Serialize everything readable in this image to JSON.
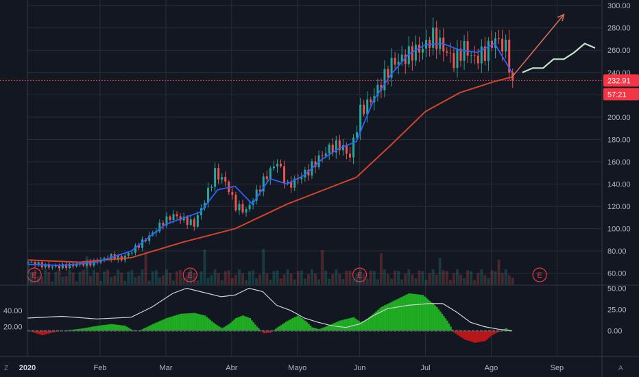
{
  "chart_data": {
    "type": "candlestick",
    "x_ticks": [
      "2020",
      "Feb",
      "Mar",
      "Abr",
      "Mayo",
      "Jun",
      "Jul",
      "Ago",
      "Sep"
    ],
    "price_axis": {
      "ticks": [
        "300.00",
        "280.00",
        "260.00",
        "240.00",
        "220.00",
        "200.00",
        "180.00",
        "160.00",
        "140.00",
        "120.00",
        "100.00",
        "80.00",
        "60.00"
      ],
      "ylim": [
        50,
        305
      ]
    },
    "price_path": [
      [
        0,
        70
      ],
      [
        3,
        68
      ],
      [
        6,
        66
      ],
      [
        9,
        66
      ],
      [
        12,
        67
      ],
      [
        15,
        68
      ],
      [
        18,
        69
      ],
      [
        21,
        72
      ],
      [
        24,
        75
      ],
      [
        27,
        73
      ],
      [
        30,
        80
      ],
      [
        33,
        88
      ],
      [
        36,
        96
      ],
      [
        39,
        106
      ],
      [
        42,
        112
      ],
      [
        45,
        108
      ],
      [
        48,
        104
      ],
      [
        51,
        125
      ],
      [
        54,
        150
      ],
      [
        57,
        142
      ],
      [
        60,
        120
      ],
      [
        63,
        116
      ],
      [
        66,
        132
      ],
      [
        69,
        148
      ],
      [
        72,
        160
      ],
      [
        75,
        138
      ],
      [
        78,
        145
      ],
      [
        81,
        152
      ],
      [
        84,
        163
      ],
      [
        87,
        172
      ],
      [
        90,
        175
      ],
      [
        93,
        165
      ],
      [
        96,
        205
      ],
      [
        99,
        215
      ],
      [
        102,
        230
      ],
      [
        105,
        248
      ],
      [
        108,
        252
      ],
      [
        111,
        258
      ],
      [
        114,
        262
      ],
      [
        117,
        272
      ],
      [
        120,
        262
      ],
      [
        123,
        250
      ],
      [
        126,
        262
      ],
      [
        129,
        252
      ],
      [
        132,
        258
      ],
      [
        135,
        270
      ],
      [
        138,
        262
      ],
      [
        140,
        232.91
      ]
    ],
    "sma_fast": [
      [
        0,
        68
      ],
      [
        10,
        67
      ],
      [
        20,
        70
      ],
      [
        30,
        80
      ],
      [
        40,
        104
      ],
      [
        50,
        115
      ],
      [
        55,
        135
      ],
      [
        60,
        138
      ],
      [
        65,
        122
      ],
      [
        70,
        145
      ],
      [
        75,
        140
      ],
      [
        80,
        148
      ],
      [
        85,
        162
      ],
      [
        90,
        172
      ],
      [
        95,
        178
      ],
      [
        100,
        215
      ],
      [
        105,
        238
      ],
      [
        110,
        256
      ],
      [
        115,
        265
      ],
      [
        120,
        266
      ],
      [
        125,
        260
      ],
      [
        130,
        258
      ],
      [
        135,
        266
      ],
      [
        140,
        240
      ]
    ],
    "sma_slow": [
      [
        0,
        72
      ],
      [
        15,
        70
      ],
      [
        30,
        74
      ],
      [
        45,
        88
      ],
      [
        60,
        100
      ],
      [
        75,
        122
      ],
      [
        90,
        140
      ],
      [
        95,
        146
      ],
      [
        105,
        175
      ],
      [
        115,
        205
      ],
      [
        125,
        222
      ],
      [
        135,
        232
      ],
      [
        140,
        236
      ]
    ],
    "projection": [
      [
        143,
        240
      ],
      [
        146,
        244
      ],
      [
        149,
        244
      ],
      [
        152,
        252
      ],
      [
        155,
        252
      ],
      [
        158,
        258
      ],
      [
        161,
        266
      ],
      [
        164,
        262
      ]
    ],
    "arrow": {
      "from": [
        140,
        236
      ],
      "to": [
        155,
        292
      ]
    },
    "oscillator": {
      "ticks_right": [
        "50.00",
        "25.00",
        "0.00"
      ],
      "ticks_left": [
        "40.00",
        "20.00"
      ],
      "ylim": [
        -30,
        52
      ],
      "histogram": [
        [
          0,
          0
        ],
        [
          4,
          -5
        ],
        [
          8,
          -1
        ],
        [
          12,
          1
        ],
        [
          16,
          3
        ],
        [
          20,
          6
        ],
        [
          24,
          8
        ],
        [
          28,
          6
        ],
        [
          30,
          1
        ],
        [
          32,
          0
        ],
        [
          36,
          8
        ],
        [
          40,
          15
        ],
        [
          44,
          20
        ],
        [
          48,
          21
        ],
        [
          51,
          18
        ],
        [
          54,
          8
        ],
        [
          56,
          3
        ],
        [
          58,
          8
        ],
        [
          60,
          15
        ],
        [
          62,
          18
        ],
        [
          64,
          15
        ],
        [
          66,
          5
        ],
        [
          68,
          -3
        ],
        [
          70,
          -2
        ],
        [
          72,
          4
        ],
        [
          75,
          12
        ],
        [
          78,
          18
        ],
        [
          80,
          12
        ],
        [
          82,
          4
        ],
        [
          84,
          2
        ],
        [
          86,
          5
        ],
        [
          90,
          12
        ],
        [
          94,
          16
        ],
        [
          96,
          10
        ],
        [
          98,
          14
        ],
        [
          102,
          28
        ],
        [
          106,
          36
        ],
        [
          110,
          44
        ],
        [
          114,
          42
        ],
        [
          118,
          28
        ],
        [
          121,
          12
        ],
        [
          123,
          -2
        ],
        [
          126,
          -10
        ],
        [
          129,
          -14
        ],
        [
          132,
          -12
        ],
        [
          134,
          -5
        ],
        [
          136,
          -1
        ],
        [
          138,
          3
        ],
        [
          140,
          -2
        ]
      ],
      "line": [
        [
          0,
          15
        ],
        [
          10,
          17
        ],
        [
          20,
          14
        ],
        [
          30,
          16
        ],
        [
          36,
          28
        ],
        [
          42,
          44
        ],
        [
          46,
          50
        ],
        [
          50,
          46
        ],
        [
          56,
          40
        ],
        [
          60,
          42
        ],
        [
          64,
          50
        ],
        [
          68,
          46
        ],
        [
          72,
          30
        ],
        [
          76,
          24
        ],
        [
          80,
          15
        ],
        [
          84,
          10
        ],
        [
          88,
          6
        ],
        [
          92,
          4
        ],
        [
          96,
          8
        ],
        [
          100,
          18
        ],
        [
          104,
          26
        ],
        [
          110,
          30
        ],
        [
          116,
          32
        ],
        [
          120,
          32
        ],
        [
          124,
          22
        ],
        [
          128,
          10
        ],
        [
          132,
          5
        ],
        [
          136,
          2
        ],
        [
          140,
          0
        ]
      ]
    }
  },
  "price_label": "232.91",
  "countdown_label": "57:21",
  "earnings_label": "E",
  "corner_left": "Z",
  "corner_right": "A",
  "colors": {
    "background": "#131722",
    "grid": "#2a2e39",
    "up": "#26a69a",
    "down": "#ef5350",
    "sma_fast": "#2962ff",
    "sma_slow": "#d2452a",
    "projection": "#c8e6c9",
    "arrow": "#e0715c",
    "price_line": "#f23645",
    "osc_pos": "#22c022",
    "osc_neg": "#d01818",
    "osc_line": "#d1d4dc"
  }
}
